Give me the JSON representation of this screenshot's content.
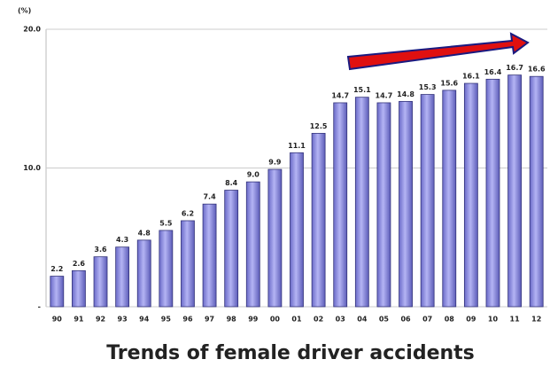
{
  "chart_data": {
    "type": "bar",
    "title": "Trends of female driver accidents",
    "y_label": "(%)",
    "categories": [
      "90",
      "91",
      "92",
      "93",
      "94",
      "95",
      "96",
      "97",
      "98",
      "99",
      "00",
      "01",
      "02",
      "03",
      "04",
      "05",
      "06",
      "07",
      "08",
      "09",
      "10",
      "11",
      "12"
    ],
    "values": [
      2.2,
      2.6,
      3.6,
      4.3,
      4.8,
      5.5,
      6.2,
      7.4,
      8.4,
      9.0,
      9.9,
      11.1,
      12.5,
      14.7,
      15.1,
      14.7,
      14.8,
      15.3,
      15.6,
      16.1,
      16.4,
      16.7,
      16.6
    ],
    "value_labels": [
      "2.2",
      "2.6",
      "3.6",
      "4.3",
      "4.8",
      "5.5",
      "6.2",
      "7.4",
      "8.4",
      "9.0",
      "9.9",
      "11.1",
      "12.5",
      "14.7",
      "15.1",
      "14.7",
      "14.8",
      "15.3",
      "15.6",
      "16.1",
      "16.4",
      "16.7",
      "16.6"
    ],
    "color": "#8c8ce0",
    "ylim": [
      0,
      20
    ],
    "yticks": [
      {
        "value": 0,
        "label": "-"
      },
      {
        "value": 10,
        "label": "10.0"
      },
      {
        "value": 20,
        "label": "20.0"
      }
    ],
    "grid": true
  }
}
